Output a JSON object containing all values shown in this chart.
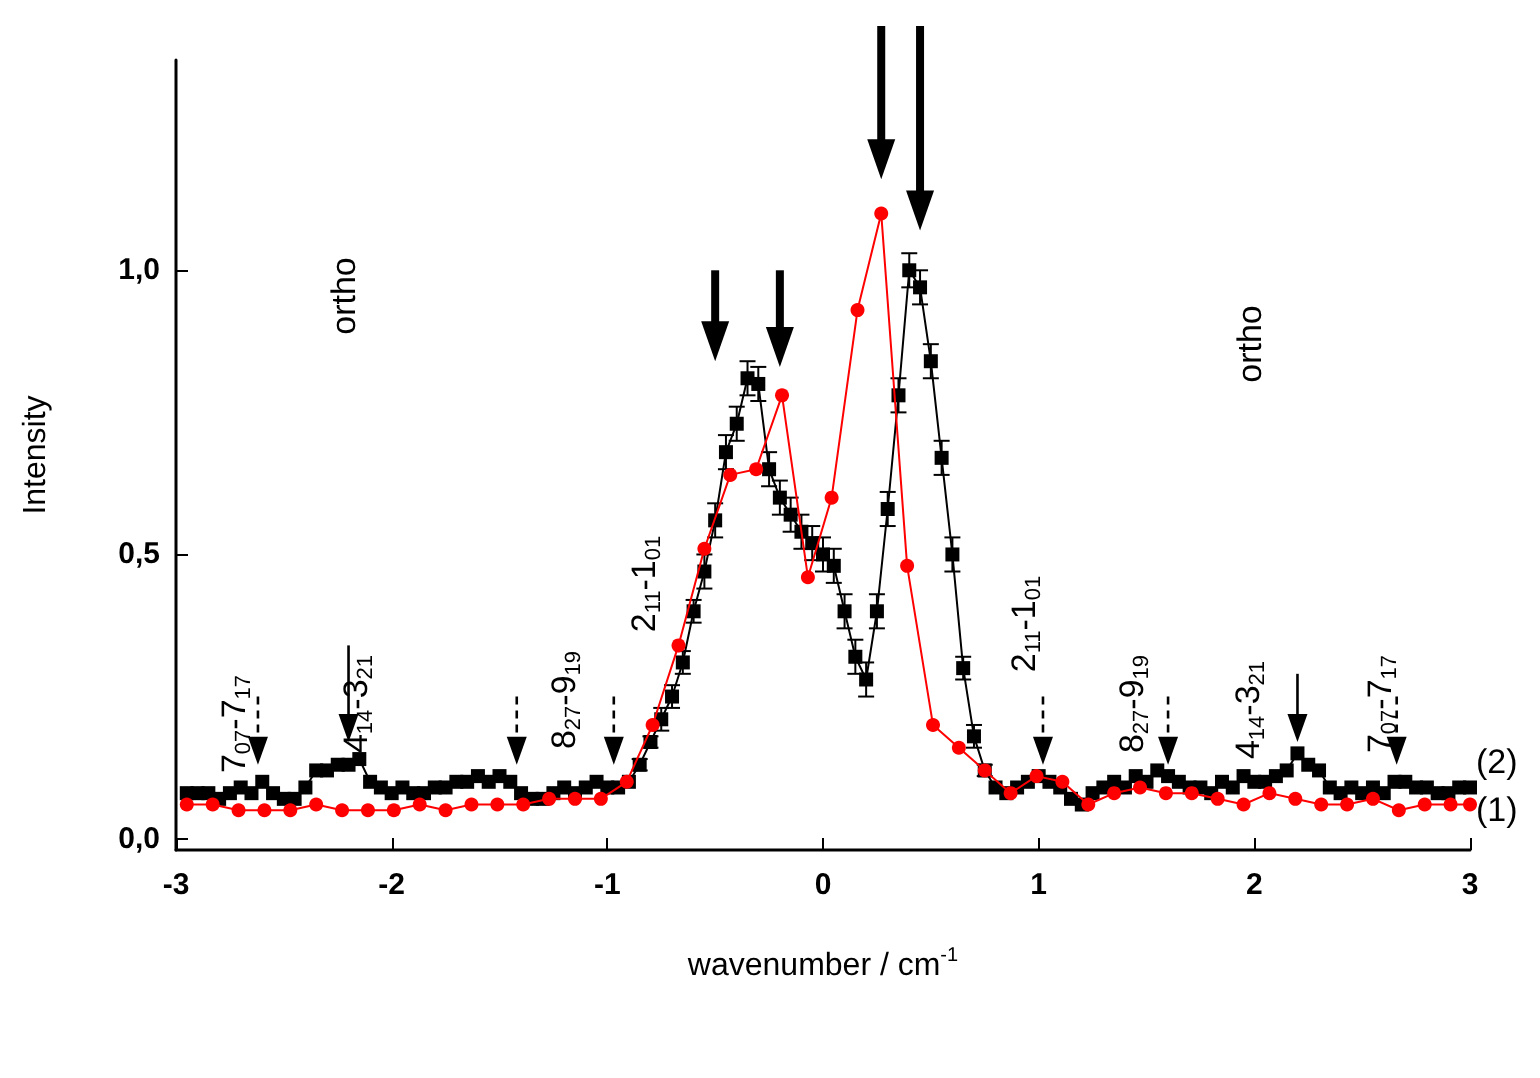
{
  "chart_data": {
    "type": "line",
    "xlabel": "wavenumber / cm$^{-1}$",
    "ylabel": "Intensity",
    "xlim": [
      -3,
      3
    ],
    "xticks": [
      -3,
      -2,
      -1,
      0,
      1,
      2,
      3
    ],
    "ylim": [
      -0.02,
      1.37
    ],
    "yticks": [
      {
        "value": 0,
        "label": "0,0"
      },
      {
        "value": 0.5,
        "label": "0,5"
      },
      {
        "value": 1,
        "label": "1,0"
      }
    ],
    "grid": false,
    "series": [
      {
        "color": "#000000",
        "marker": "square",
        "x": [
          -2.95,
          -2.9,
          -2.85,
          -2.8,
          -2.75,
          -2.7,
          -2.65,
          -2.6,
          -2.55,
          -2.5,
          -2.45,
          -2.4,
          -2.35,
          -2.3,
          -2.25,
          -2.2,
          -2.15,
          -2.1,
          -2.05,
          -2.0,
          -1.95,
          -1.9,
          -1.85,
          -1.8,
          -1.75,
          -1.7,
          -1.65,
          -1.6,
          -1.55,
          -1.5,
          -1.45,
          -1.4,
          -1.35,
          -1.3,
          -1.25,
          -1.2,
          -1.15,
          -1.1,
          -1.05,
          -1.0,
          -0.95,
          -0.9,
          -0.85,
          -0.8,
          -0.75,
          -0.7,
          -0.65,
          -0.6,
          -0.55,
          -0.5,
          -0.45,
          -0.4,
          -0.35,
          -0.3,
          -0.25,
          -0.2,
          -0.15,
          -0.1,
          -0.05,
          0.0,
          0.05,
          0.1,
          0.15,
          0.2,
          0.25,
          0.3,
          0.35,
          0.4,
          0.45,
          0.5,
          0.55,
          0.6,
          0.65,
          0.7,
          0.75,
          0.8,
          0.85,
          0.9,
          0.95,
          1.0,
          1.05,
          1.1,
          1.15,
          1.2,
          1.25,
          1.3,
          1.35,
          1.4,
          1.45,
          1.5,
          1.55,
          1.6,
          1.65,
          1.7,
          1.75,
          1.8,
          1.85,
          1.9,
          1.95,
          2.0,
          2.05,
          2.1,
          2.15,
          2.2,
          2.25,
          2.3,
          2.35,
          2.4,
          2.45,
          2.5,
          2.55,
          2.6,
          2.65,
          2.7,
          2.75,
          2.8,
          2.85,
          2.9,
          2.95,
          3.0
        ],
        "values": [
          0.08,
          0.08,
          0.08,
          0.07,
          0.08,
          0.09,
          0.08,
          0.1,
          0.08,
          0.07,
          0.07,
          0.09,
          0.12,
          0.12,
          0.13,
          0.13,
          0.14,
          0.1,
          0.09,
          0.08,
          0.09,
          0.08,
          0.08,
          0.09,
          0.09,
          0.1,
          0.1,
          0.11,
          0.1,
          0.11,
          0.1,
          0.08,
          0.07,
          0.07,
          0.08,
          0.09,
          0.08,
          0.09,
          0.1,
          0.09,
          0.09,
          0.1,
          0.13,
          0.17,
          0.21,
          0.25,
          0.31,
          0.4,
          0.47,
          0.56,
          0.68,
          0.73,
          0.81,
          0.8,
          0.65,
          0.6,
          0.57,
          0.54,
          0.52,
          0.5,
          0.48,
          0.4,
          0.32,
          0.28,
          0.4,
          0.58,
          0.78,
          1.0,
          0.97,
          0.84,
          0.67,
          0.5,
          0.3,
          0.18,
          0.12,
          0.09,
          0.08,
          0.09,
          0.1,
          0.11,
          0.1,
          0.09,
          0.07,
          0.06,
          0.08,
          0.09,
          0.1,
          0.09,
          0.11,
          0.1,
          0.12,
          0.11,
          0.1,
          0.09,
          0.09,
          0.08,
          0.1,
          0.09,
          0.11,
          0.1,
          0.1,
          0.11,
          0.12,
          0.15,
          0.13,
          0.12,
          0.09,
          0.08,
          0.09,
          0.08,
          0.09,
          0.08,
          0.1,
          0.1,
          0.09,
          0.09,
          0.08,
          0.08,
          0.09,
          0.09
        ],
        "errors": [
          null,
          null,
          null,
          null,
          null,
          null,
          null,
          null,
          null,
          null,
          null,
          null,
          null,
          null,
          null,
          null,
          null,
          null,
          null,
          null,
          null,
          null,
          null,
          null,
          null,
          null,
          null,
          null,
          null,
          null,
          null,
          null,
          null,
          null,
          null,
          null,
          null,
          null,
          null,
          null,
          null,
          null,
          0.01,
          0.01,
          0.02,
          0.02,
          0.02,
          0.02,
          0.03,
          0.03,
          0.03,
          0.03,
          0.03,
          0.03,
          0.03,
          0.03,
          0.03,
          0.03,
          0.03,
          0.03,
          0.03,
          0.03,
          0.03,
          0.03,
          0.03,
          0.03,
          0.03,
          0.03,
          0.03,
          0.03,
          0.03,
          0.03,
          0.02,
          0.02,
          0.01,
          null,
          null,
          null,
          null,
          null,
          null,
          null,
          null,
          null,
          null,
          null,
          null,
          null,
          null,
          null,
          null,
          null,
          null,
          null,
          null,
          null,
          null,
          null,
          null,
          null,
          null,
          null,
          null,
          null,
          null,
          null,
          null,
          null,
          null,
          null,
          null,
          null,
          null,
          null,
          null,
          null,
          null,
          null,
          null,
          null
        ]
      },
      {
        "color": "#ff0000",
        "marker": "circle",
        "x": [
          -2.95,
          -2.83,
          -2.71,
          -2.59,
          -2.47,
          -2.35,
          -2.23,
          -2.11,
          -1.99,
          -1.87,
          -1.75,
          -1.63,
          -1.51,
          -1.39,
          -1.27,
          -1.15,
          -1.03,
          -0.91,
          -0.79,
          -0.67,
          -0.55,
          -0.43,
          -0.31,
          -0.19,
          -0.07,
          0.04,
          0.16,
          0.27,
          0.39,
          0.51,
          0.63,
          0.75,
          0.87,
          0.99,
          1.11,
          1.23,
          1.35,
          1.47,
          1.59,
          1.71,
          1.83,
          1.95,
          2.07,
          2.19,
          2.31,
          2.43,
          2.55,
          2.67,
          2.79,
          2.91,
          3.0
        ],
        "values": [
          0.06,
          0.06,
          0.05,
          0.05,
          0.05,
          0.06,
          0.05,
          0.05,
          0.05,
          0.06,
          0.05,
          0.06,
          0.06,
          0.06,
          0.07,
          0.07,
          0.07,
          0.1,
          0.2,
          0.34,
          0.51,
          0.64,
          0.65,
          0.78,
          0.46,
          0.6,
          0.93,
          1.1,
          0.48,
          0.2,
          0.16,
          0.12,
          0.08,
          0.11,
          0.1,
          0.06,
          0.08,
          0.09,
          0.08,
          0.08,
          0.07,
          0.06,
          0.08,
          0.07,
          0.06,
          0.06,
          0.07,
          0.05,
          0.06,
          0.06,
          0.06
        ]
      }
    ],
    "annotations": [
      "7$_{07}$-7$_{17}$",
      "4$_{14}$-3$_{21}$",
      "ortho",
      "8$_{27}$-9$_{19}$",
      "2$_{11}$-1$_{01}$",
      "2$_{11}$-1$_{01}$",
      "8$_{27}$-9$_{19}$",
      "4$_{14}$-3$_{21}$",
      "ortho",
      "7$_{07}$-7$_{17}$",
      "(2)",
      "(1)"
    ]
  }
}
